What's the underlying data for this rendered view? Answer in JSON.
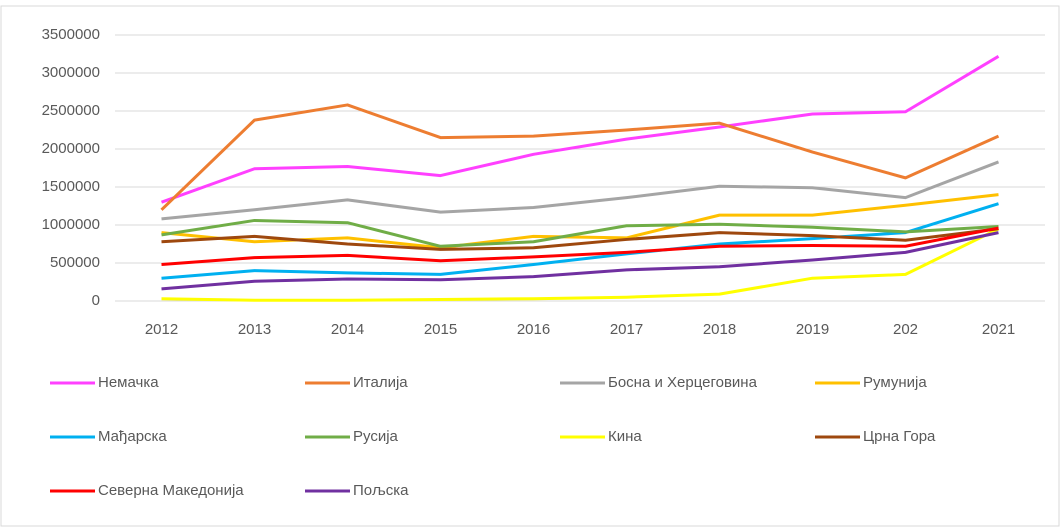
{
  "chart_data": {
    "type": "line",
    "categories": [
      "2012",
      "2013",
      "2014",
      "2015",
      "2016",
      "2017",
      "2018",
      "2019",
      "202",
      "2021"
    ],
    "series": [
      {
        "name": "Немачка",
        "color": "#ff40ff",
        "values": [
          1300000,
          1740000,
          1770000,
          1650000,
          1930000,
          2130000,
          2290000,
          2460000,
          2490000,
          3220000
        ]
      },
      {
        "name": "Италија",
        "color": "#ed7d31",
        "values": [
          1200000,
          2380000,
          2580000,
          2150000,
          2170000,
          2250000,
          2340000,
          1960000,
          1620000,
          2170000
        ]
      },
      {
        "name": "Босна и Херцеговина",
        "color": "#a5a5a5",
        "values": [
          1080000,
          1200000,
          1330000,
          1170000,
          1230000,
          1360000,
          1510000,
          1490000,
          1360000,
          1830000
        ]
      },
      {
        "name": "Румунија",
        "color": "#ffc000",
        "values": [
          900000,
          780000,
          830000,
          700000,
          850000,
          830000,
          1130000,
          1130000,
          1260000,
          1400000
        ]
      },
      {
        "name": "Мађарска",
        "color": "#00b0f0",
        "values": [
          300000,
          400000,
          370000,
          350000,
          480000,
          620000,
          750000,
          820000,
          900000,
          1280000
        ]
      },
      {
        "name": "Русија",
        "color": "#70ad47",
        "values": [
          870000,
          1060000,
          1030000,
          720000,
          780000,
          990000,
          1010000,
          970000,
          910000,
          980000
        ]
      },
      {
        "name": "Кина",
        "color": "#ffff00",
        "values": [
          30000,
          10000,
          10000,
          20000,
          30000,
          50000,
          90000,
          300000,
          350000,
          950000
        ]
      },
      {
        "name": "Црна Гора",
        "color": "#9e480e",
        "values": [
          780000,
          850000,
          750000,
          680000,
          700000,
          810000,
          900000,
          860000,
          800000,
          950000
        ]
      },
      {
        "name": "Северна Македонија",
        "color": "#ff0000",
        "values": [
          480000,
          570000,
          600000,
          530000,
          580000,
          640000,
          720000,
          730000,
          720000,
          960000
        ]
      },
      {
        "name": "Пољска",
        "color": "#7030a0",
        "values": [
          160000,
          260000,
          290000,
          280000,
          320000,
          410000,
          450000,
          540000,
          640000,
          900000
        ]
      }
    ],
    "ylim": [
      0,
      3500000
    ],
    "yticks": [
      0,
      500000,
      1000000,
      1500000,
      2000000,
      2500000,
      3000000,
      3500000
    ],
    "grid": true
  }
}
